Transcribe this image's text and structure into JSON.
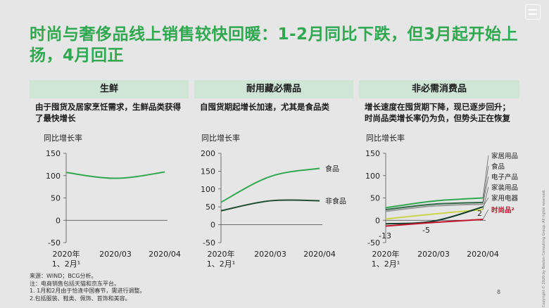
{
  "title": "时尚与奢侈品线上销售较快回暖：1-2月同比下跌，但3月起开始上扬，4月回正",
  "footnotes": [
    "来源：WIND；BCG分析。",
    "注：电商销售包括天猫和京东平台。",
    "1.   1月和2月由于恰逢中国春节，需进行调整。",
    "2.包括服装、鞋类、佩饰、首饰和美容。"
  ],
  "page_number": "8",
  "copyright": "Copyright © 2020 by Boston Consulting Group. All rights reserved.",
  "colors": {
    "title": "#2fa84f",
    "header_bg": "#cfe6d6",
    "green": "#2fa84f",
    "dark_green": "#1e4d33",
    "red": "#c0152b",
    "gray": "#9a9a9a",
    "lime": "#c8d84a"
  },
  "chart_data": [
    {
      "type": "line",
      "title": "生鲜",
      "subtitle": "由于囤货及居家烹饪需求，生鲜品类获得了最快增长",
      "ylabel": "同比增长率",
      "ylim": [
        -50,
        150
      ],
      "yticks": [
        -50,
        0,
        50,
        100,
        150
      ],
      "categories": [
        "2020年\n1、2月¹",
        "2020/03",
        "2020/04"
      ],
      "series": [
        {
          "name": "",
          "values": [
            107,
            94,
            108
          ],
          "color": "#2fa84f"
        }
      ]
    },
    {
      "type": "line",
      "title": "耐用藏必需品",
      "subtitle": "自囤货期起增长加速，尤其是食品类",
      "ylabel": "同比增长率",
      "ylim": [
        -50,
        200
      ],
      "yticks": [
        -50,
        0,
        50,
        100,
        150,
        200
      ],
      "categories": [
        "2020年\n1、2月¹",
        "2020/03",
        "2020/04"
      ],
      "series": [
        {
          "name": "食品",
          "values": [
            63,
            135,
            158
          ],
          "color": "#2fa84f"
        },
        {
          "name": "非食品",
          "values": [
            39,
            67,
            67
          ],
          "color": "#1e4d33"
        }
      ]
    },
    {
      "type": "line",
      "title": "非必需消费品",
      "subtitle": "增长速度在囤货期下降，现已逐步回升；时尚品类增长率仍为负，但势头正在恢复",
      "ylabel": "同比增长率",
      "ylim": [
        -50,
        150
      ],
      "yticks": [
        -50,
        0,
        50,
        100,
        150
      ],
      "categories": [
        "2020年\n1、2月¹",
        "2020/03",
        "2020/04"
      ],
      "annotations": [
        "-13",
        "-5",
        "2"
      ],
      "series": [
        {
          "name": "家居用品",
          "values": [
            28,
            43,
            50
          ],
          "color": "#2fa84f"
        },
        {
          "name": "食品",
          "values": [
            24,
            36,
            40
          ],
          "color": "#2f6b45"
        },
        {
          "name": "电子产品",
          "values": [
            20,
            32,
            36
          ],
          "color": "#9a9a9a"
        },
        {
          "name": "家装用品",
          "values": [
            3,
            14,
            24
          ],
          "color": "#c8d84a"
        },
        {
          "name": "家用电器",
          "values": [
            -8,
            -2,
            30
          ],
          "color": "#123d2a"
        },
        {
          "name": "时尚品²",
          "values": [
            -13,
            -5,
            2
          ],
          "color": "#c0152b"
        }
      ]
    }
  ]
}
